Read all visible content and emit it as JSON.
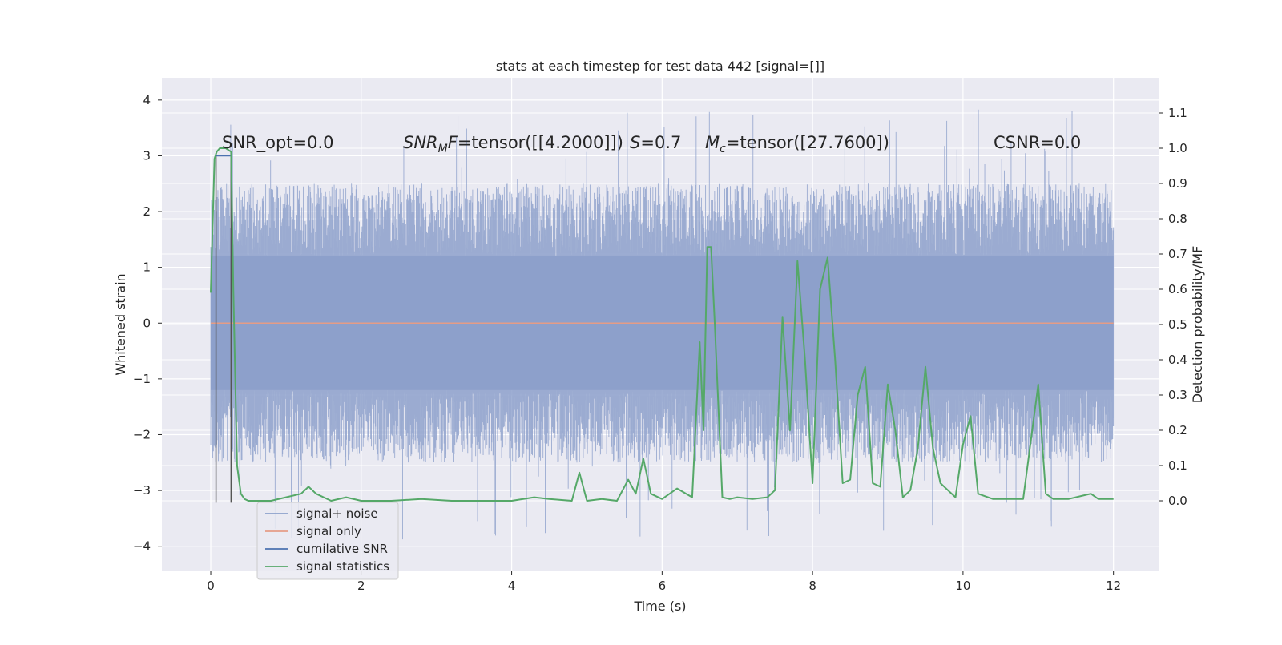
{
  "chart_data": {
    "type": "line",
    "title": "stats at each timestep for test data 442 [signal=[]]",
    "xlabel": "Time (s)",
    "ylabel": "Whitened strain",
    "y2label": "Detection probability/MF",
    "xlim": [
      -0.65,
      12.6
    ],
    "ylim": [
      -4.45,
      4.4
    ],
    "y2lim": [
      -0.2,
      1.2
    ],
    "x_ticks": [
      0,
      2,
      4,
      6,
      8,
      10,
      12
    ],
    "y_ticks": [
      -4,
      -3,
      -2,
      -1,
      0,
      1,
      2,
      3,
      4
    ],
    "y2_ticks": [
      0.0,
      0.1,
      0.2,
      0.3,
      0.4,
      0.5,
      0.6,
      0.7,
      0.8,
      0.9,
      1.0,
      1.1
    ],
    "x_tick_labels": [
      "0",
      "2",
      "4",
      "6",
      "8",
      "10",
      "12"
    ],
    "y_tick_labels": [
      "4",
      "3",
      "2",
      "1",
      "0",
      "−1",
      "−2",
      "−3",
      "−4"
    ],
    "y2_tick_labels": [
      "0.0",
      "0.1",
      "0.2",
      "0.3",
      "0.4",
      "0.5",
      "0.6",
      "0.7",
      "0.8",
      "0.9",
      "1.0",
      "1.1"
    ],
    "grid": true,
    "legend_position": "lower-left",
    "annotations": {
      "snr_opt": "SNR_opt=0.0",
      "snr_mf_sym": "SNR",
      "snr_mf_sub": "M",
      "snr_mf_f": "F",
      "snr_mf_val": "=tensor([[4.2000]])",
      "s_sym": "S",
      "s_val": "=0.7",
      "mc_sym": "M",
      "mc_sub": "c",
      "mc_val": "=tensor([27.7600])",
      "csnr": "CSNR=0.0"
    },
    "series": [
      {
        "name": "signal+ noise",
        "color": "#8da0cb",
        "axis": "left",
        "note": "whitened noise, roughly ±1.2 dense band with peaks to about ±3.9",
        "band": {
          "x": [
            0,
            12
          ],
          "core": [
            -1.2,
            1.2
          ],
          "extreme": [
            -3.9,
            3.9
          ]
        }
      },
      {
        "name": "signal only",
        "color": "#e59c86",
        "axis": "left",
        "x": [
          0,
          12
        ],
        "values": [
          0,
          0
        ]
      },
      {
        "name": "cumilative SNR",
        "color": "#4c72b0",
        "axis": "left",
        "x": [
          0.07,
          0.27
        ],
        "values": [
          3.0,
          3.0
        ]
      },
      {
        "name": "signal statistics",
        "color": "#55a868",
        "axis": "right",
        "x": [
          0.0,
          0.05,
          0.08,
          0.12,
          0.2,
          0.27,
          0.3,
          0.35,
          0.4,
          0.45,
          0.5,
          0.6,
          0.8,
          1.0,
          1.2,
          1.3,
          1.4,
          1.6,
          1.8,
          2.0,
          2.4,
          2.8,
          3.2,
          3.6,
          4.0,
          4.3,
          4.5,
          4.8,
          4.9,
          5.0,
          5.2,
          5.4,
          5.55,
          5.65,
          5.75,
          5.85,
          6.0,
          6.2,
          6.4,
          6.5,
          6.55,
          6.6,
          6.65,
          6.7,
          6.8,
          6.9,
          7.0,
          7.2,
          7.4,
          7.5,
          7.6,
          7.7,
          7.8,
          7.9,
          8.0,
          8.1,
          8.2,
          8.3,
          8.4,
          8.5,
          8.6,
          8.7,
          8.8,
          8.9,
          9.0,
          9.1,
          9.2,
          9.3,
          9.4,
          9.5,
          9.6,
          9.7,
          9.8,
          9.9,
          10.0,
          10.1,
          10.2,
          10.4,
          10.8,
          11.0,
          11.1,
          11.2,
          11.4,
          11.6,
          11.7,
          11.8,
          12.0
        ],
        "values": [
          0.59,
          0.97,
          0.99,
          1.0,
          1.0,
          0.99,
          0.6,
          0.1,
          0.02,
          0.005,
          0.0,
          0.0,
          0.0,
          0.01,
          0.02,
          0.04,
          0.02,
          0.0,
          0.01,
          0.0,
          0.0,
          0.005,
          0.0,
          0.0,
          0.0,
          0.01,
          0.005,
          0.0,
          0.08,
          0.0,
          0.005,
          0.0,
          0.06,
          0.02,
          0.12,
          0.02,
          0.005,
          0.035,
          0.01,
          0.45,
          0.2,
          0.72,
          0.72,
          0.5,
          0.01,
          0.005,
          0.01,
          0.005,
          0.01,
          0.03,
          0.52,
          0.2,
          0.68,
          0.4,
          0.05,
          0.6,
          0.69,
          0.4,
          0.05,
          0.06,
          0.3,
          0.38,
          0.05,
          0.04,
          0.33,
          0.2,
          0.01,
          0.03,
          0.15,
          0.38,
          0.15,
          0.05,
          0.03,
          0.01,
          0.16,
          0.24,
          0.02,
          0.005,
          0.005,
          0.33,
          0.02,
          0.005,
          0.005,
          0.015,
          0.02,
          0.005,
          0.005
        ]
      }
    ],
    "cursor_lines": {
      "color": "#555555",
      "x": [
        0.07,
        0.27
      ],
      "y": [
        -3.22,
        3.05
      ]
    }
  }
}
